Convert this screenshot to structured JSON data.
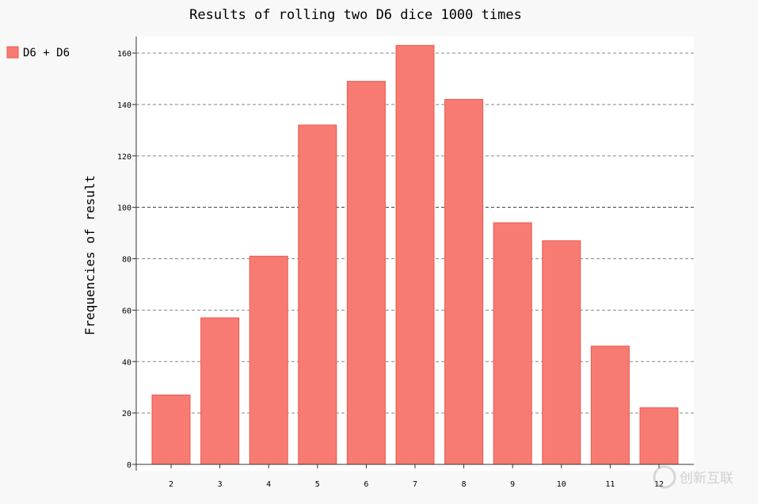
{
  "chart_data": {
    "type": "bar",
    "title": "Results of rolling two D6 dice 1000 times",
    "xlabel": "",
    "ylabel": "Frequencies of result",
    "categories": [
      "2",
      "3",
      "4",
      "5",
      "6",
      "7",
      "8",
      "9",
      "10",
      "11",
      "12"
    ],
    "series": [
      {
        "name": "D6 + D6",
        "values": [
          27,
          57,
          81,
          132,
          149,
          163,
          142,
          94,
          87,
          46,
          22
        ]
      }
    ],
    "ylim": [
      0,
      166
    ],
    "yticks": [
      "0",
      "20",
      "40",
      "60",
      "80",
      "100",
      "120",
      "140",
      "160"
    ],
    "grid": true,
    "legend_position": "top-left",
    "colors": {
      "bar_fill": "#f77b72",
      "bar_stroke": "#e8584e",
      "plot_bg": "#ffffff",
      "page_bg": "#f8f8f8",
      "grid": "#888888",
      "axis": "#333333",
      "text": "#000000"
    }
  },
  "watermark": {
    "text": "创新互联"
  }
}
